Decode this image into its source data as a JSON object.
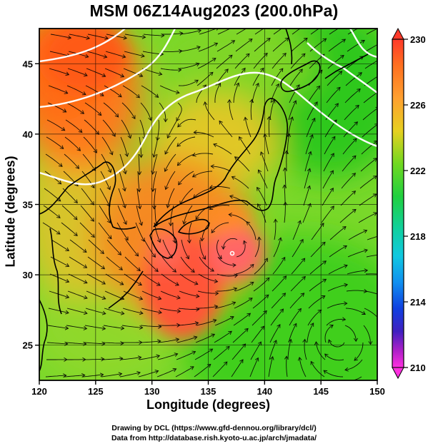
{
  "title": "MSM 06Z14Aug2023 (200.0hPa)",
  "xlabel": "Longitude (degrees)",
  "ylabel": "Latitude  (degrees)",
  "x_ticks": [
    "120",
    "125",
    "130",
    "135",
    "140",
    "145",
    "150"
  ],
  "y_ticks": [
    "25",
    "30",
    "35",
    "40",
    "45"
  ],
  "colorbar_ticks": [
    "230",
    "226",
    "222",
    "218",
    "214",
    "210"
  ],
  "credits": [
    "Drawing by DCL (https://www.gfd-dennou.org/library/dcl/)",
    "Data from http://database.rish.kyoto-u.ac.jp/arch/jmadata/"
  ],
  "colors": {
    "green": "#3fcf1f",
    "yellow_green": "#b5e020",
    "orange": "#ff7a1a",
    "red": "#ff4a3a",
    "contour": "#ffffff"
  },
  "chart_data": {
    "type": "heatmap",
    "title": "MSM 06Z14Aug2023 (200.0hPa)",
    "xlabel": "Longitude (degrees)",
    "ylabel": "Latitude  (degrees)",
    "xlim": [
      120,
      150
    ],
    "ylim": [
      22.5,
      47.5
    ],
    "colorbar_range": [
      210,
      230
    ],
    "colorbar_labels": [
      230,
      226,
      222,
      218,
      214,
      210
    ],
    "grid": true
  }
}
